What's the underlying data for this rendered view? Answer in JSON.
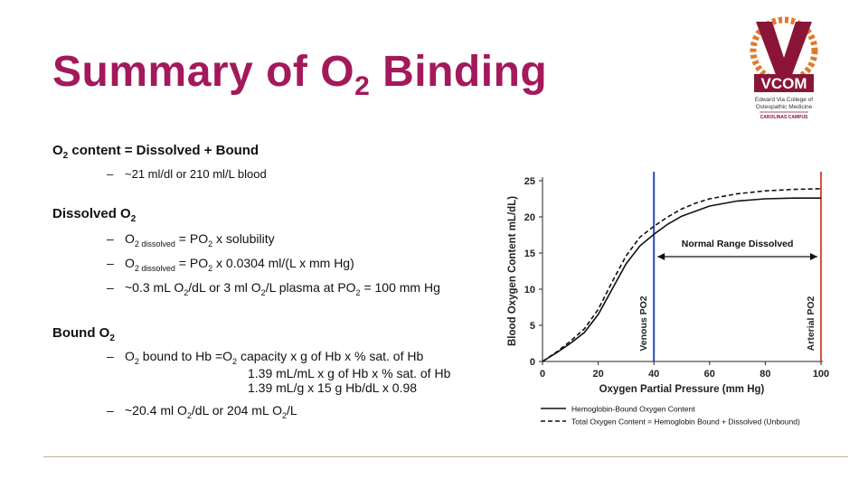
{
  "slide": {
    "title_main": "Summary of O",
    "title_sub": "2",
    "title_end": " Binding"
  },
  "content": {
    "sec1": {
      "a": "O",
      "s": "2",
      "b": " content = Dissolved + Bound",
      "bullet": "~21 ml/dl or 210 ml/L blood"
    },
    "sec2": {
      "a": "Dissolved O",
      "s": "2",
      "b1": {
        "p1": "O",
        "p2": "2 dissolved",
        "p3": " = PO",
        "p4": "2",
        "p5": " x solubility"
      },
      "b2": {
        "p1": "O",
        "p2": "2 dissolved",
        "p3": " = PO",
        "p4": "2",
        "p5": " x 0.0304 ml/(L x mm Hg)"
      },
      "b3": {
        "p1": "~0.3 mL O",
        "p2": "2",
        "p3": "/dL or 3 ml O",
        "p4": "2",
        "p5": "/L plasma at PO",
        "p6": "2",
        "p7": " = 100 mm Hg"
      }
    },
    "sec3": {
      "a": "Bound O",
      "s": "2",
      "b1": {
        "p1": "O",
        "p2": "2",
        "p3": " bound to Hb =O",
        "p4": "2",
        "p5": " capacity x g of Hb x % sat. of Hb"
      },
      "cont1": "1.39 mL/mL x g of Hb x % sat. of Hb",
      "cont2": "1.39 mL/g x 15 g Hb/dL x 0.98",
      "b2": {
        "p1": "~20.4 ml O",
        "p2": "2",
        "p3": "/dL or 204 mL O",
        "p4": "2",
        "p5": "/L"
      }
    }
  },
  "logo": {
    "mark": "V",
    "name": "VCOM",
    "line1": "Edward Via College of",
    "line2": "Osteopathic Medicine",
    "campus": "CAROLINAS CAMPUS",
    "colors": {
      "maroon": "#8a1538",
      "orange": "#e07a2b"
    }
  },
  "chart_data": {
    "type": "line",
    "xlabel": "Oxygen Partial Pressure (mm Hg)",
    "ylabel": "Blood Oxygen Content mL/dL)",
    "xlim": [
      0,
      100
    ],
    "ylim": [
      0,
      25
    ],
    "x_ticks": [
      "0",
      "20",
      "40",
      "60",
      "80",
      "100"
    ],
    "y_ticks": [
      "0",
      "5",
      "10",
      "15",
      "20",
      "25"
    ],
    "series": [
      {
        "name": "Hemoglobin-Bound Oxygen Content",
        "style": "solid",
        "x": [
          0,
          5,
          10,
          15,
          20,
          25,
          30,
          35,
          40,
          45,
          50,
          55,
          60,
          70,
          80,
          90,
          100
        ],
        "y": [
          0,
          1.2,
          2.5,
          4,
          6.5,
          10,
          13.5,
          16,
          17.6,
          19,
          20.1,
          20.8,
          21.5,
          22.2,
          22.5,
          22.6,
          22.6
        ]
      },
      {
        "name": "Total Oxygen Content = Hemoglobin Bound + Dissolved (Unbound)",
        "style": "dashed",
        "x": [
          0,
          5,
          10,
          15,
          20,
          25,
          30,
          35,
          40,
          45,
          50,
          55,
          60,
          70,
          80,
          90,
          100
        ],
        "y": [
          0,
          1.3,
          2.8,
          4.5,
          7.2,
          11,
          14.6,
          17.2,
          18.7,
          20,
          21.1,
          21.9,
          22.5,
          23.2,
          23.6,
          23.8,
          23.9
        ]
      }
    ],
    "vlines": [
      {
        "x": 40,
        "label": "Venous PO2",
        "color": "#2a4bb5"
      },
      {
        "x": 100,
        "label": "Arterial PO2",
        "color": "#d9523b"
      }
    ],
    "annotation": {
      "text": "Normal Range Dissolved",
      "from": 40,
      "to": 100
    }
  }
}
